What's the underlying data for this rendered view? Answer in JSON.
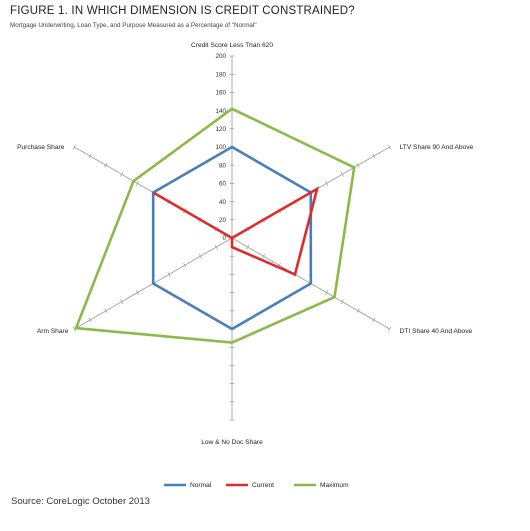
{
  "figure": {
    "title": "FIGURE 1. IN WHICH DIMENSION IS CREDIT CONSTRAINED?",
    "subtitle": "Mortgage Underwriting, Loan Type, and Purpose Measured as a Percentage of \"Normal\"",
    "source": "Source: CoreLogic October 2013"
  },
  "chart_data": {
    "type": "radar",
    "axes": [
      "Credit Score Less Than 620",
      "LTV Share 90 And Above",
      "DTI Share 40 And Above",
      "Low & No Doc Share",
      "Arm Share",
      "Purchase Share"
    ],
    "r_ticks": [
      0,
      20,
      40,
      60,
      80,
      100,
      120,
      140,
      160,
      180,
      200
    ],
    "rlim": [
      0,
      200
    ],
    "grid": false,
    "legend_position": "bottom",
    "series": [
      {
        "name": "Normal",
        "color": "#4a7ebb",
        "values": [
          100,
          100,
          100,
          100,
          100,
          100
        ]
      },
      {
        "name": "Current",
        "color": "#e02b2b",
        "values": [
          0,
          108,
          80,
          10,
          0,
          100
        ]
      },
      {
        "name": "Maximum",
        "color": "#8db84a",
        "values": [
          142,
          155,
          130,
          115,
          198,
          125
        ]
      }
    ]
  }
}
